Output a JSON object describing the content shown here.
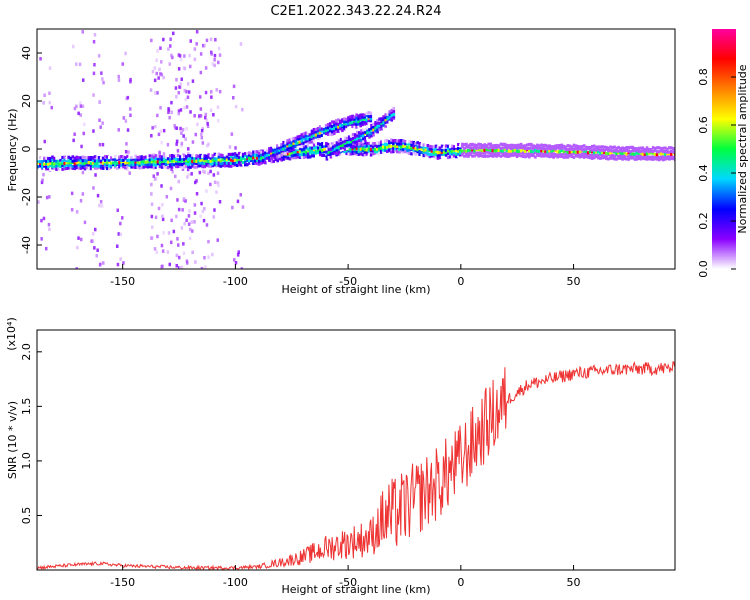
{
  "title": "C2E1.2022.343.22.24.R24",
  "chart_data": [
    {
      "type": "heatmap",
      "xlabel": "Height of straight line (km)",
      "ylabel": "Frequency (Hz)",
      "xlim": [
        -188,
        95
      ],
      "ylim": [
        -50,
        50
      ],
      "xticks": [
        -150,
        -100,
        -50,
        0,
        50
      ],
      "yticks": [
        -40,
        -20,
        0,
        20,
        40
      ],
      "colorbar": {
        "label": "Normalized spectral amplitude",
        "range": [
          0,
          1
        ],
        "ticks": [
          0.0,
          0.2,
          0.4,
          0.6,
          0.8
        ],
        "colormap": [
          "#ffffff",
          "#8a00ff",
          "#0000ff",
          "#00d8ff",
          "#00ff40",
          "#ffff00",
          "#ff8000",
          "#ff0000",
          "#ff00a0"
        ]
      },
      "ridges": [
        {
          "x": [
            -188,
            -150,
            -120,
            -100,
            -90,
            -80,
            -60,
            -40,
            -30,
            -25,
            -10,
            0,
            20,
            50,
            80,
            95
          ],
          "y": [
            -6,
            -5.5,
            -5,
            -4.5,
            -3.5,
            -2,
            0,
            0,
            1.5,
            1,
            -1.5,
            -0.5,
            -0.5,
            -1,
            -2,
            -2
          ]
        },
        {
          "x": [
            -90,
            -80,
            -70,
            -60,
            -50,
            -45,
            -40
          ],
          "y": [
            -4,
            0,
            4,
            8,
            11,
            12,
            13
          ]
        },
        {
          "x": [
            -60,
            -55,
            -50,
            -45,
            -40,
            -35,
            -30
          ],
          "y": [
            -2,
            1,
            3,
            5,
            8,
            11,
            15
          ]
        }
      ]
    },
    {
      "type": "line",
      "xlabel": "Height of straight line (km)",
      "ylabel": "SNR (10 * v/v)",
      "yscale_label": "(x10⁴)",
      "xlim": [
        -188,
        95
      ],
      "ylim": [
        0,
        2.2
      ],
      "xticks": [
        -150,
        -100,
        -50,
        0,
        50
      ],
      "yticks": [
        0.5,
        1.0,
        1.5,
        2.0
      ],
      "ytick_labels": [
        "0.5",
        "1.0",
        "1.5",
        "2.0"
      ],
      "series_color": "#ee3333",
      "trend": {
        "x": [
          -188,
          -170,
          -160,
          -150,
          -120,
          -100,
          -90,
          -80,
          -70,
          -60,
          -50,
          -40,
          -35,
          -30,
          -20,
          -10,
          0,
          10,
          20,
          30,
          50,
          70,
          95
        ],
        "y": [
          0.02,
          0.05,
          0.06,
          0.04,
          0.02,
          0.02,
          0.03,
          0.07,
          0.12,
          0.2,
          0.25,
          0.3,
          0.45,
          0.5,
          0.65,
          0.8,
          1.0,
          1.3,
          1.55,
          1.7,
          1.8,
          1.84,
          1.85
        ]
      }
    }
  ]
}
